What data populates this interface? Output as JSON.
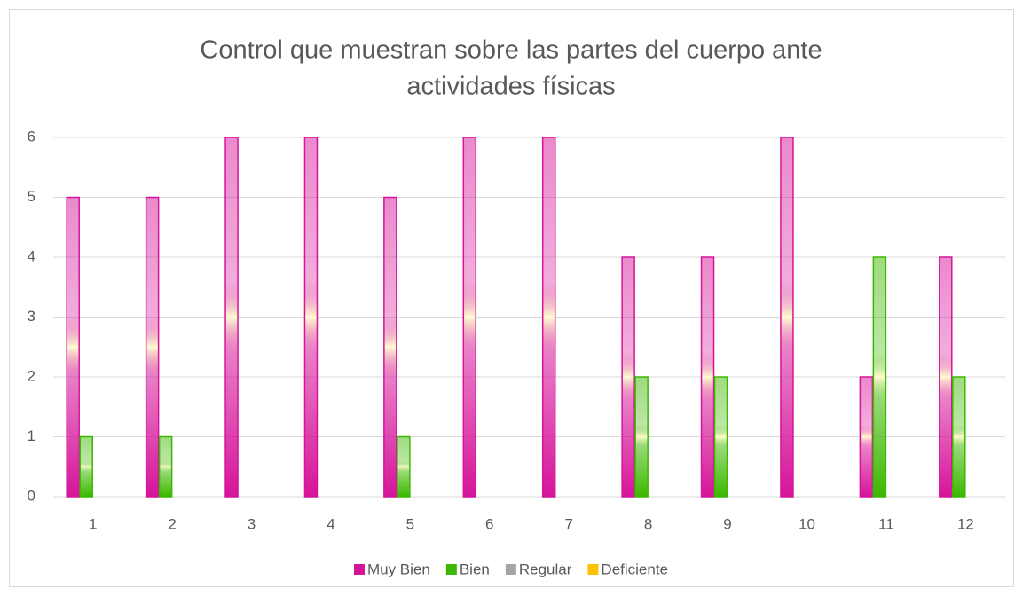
{
  "chart_data": {
    "type": "bar",
    "title": [
      "Control que muestran sobre las partes del cuerpo ante",
      "actividades físicas"
    ],
    "categories": [
      "1",
      "2",
      "3",
      "4",
      "5",
      "6",
      "7",
      "8",
      "9",
      "10",
      "11",
      "12"
    ],
    "series": [
      {
        "name": "Muy Bien",
        "color": "#d6149a",
        "values": [
          5,
          5,
          6,
          6,
          5,
          6,
          6,
          4,
          4,
          6,
          2,
          4
        ]
      },
      {
        "name": "Bien",
        "color": "#3cb800",
        "values": [
          1,
          1,
          0,
          0,
          1,
          0,
          0,
          2,
          2,
          0,
          4,
          2
        ]
      },
      {
        "name": "Regular",
        "color": "#a5a5a5",
        "values": [
          0,
          0,
          0,
          0,
          0,
          0,
          0,
          0,
          0,
          0,
          0,
          0
        ]
      },
      {
        "name": "Deficiente",
        "color": "#ffc000",
        "values": [
          0,
          0,
          0,
          0,
          0,
          0,
          0,
          0,
          0,
          0,
          0,
          0
        ]
      }
    ],
    "ylim": [
      0,
      6
    ],
    "yticks": [
      0,
      1,
      2,
      3,
      4,
      5,
      6
    ],
    "grid": true,
    "legend": "bottom"
  }
}
